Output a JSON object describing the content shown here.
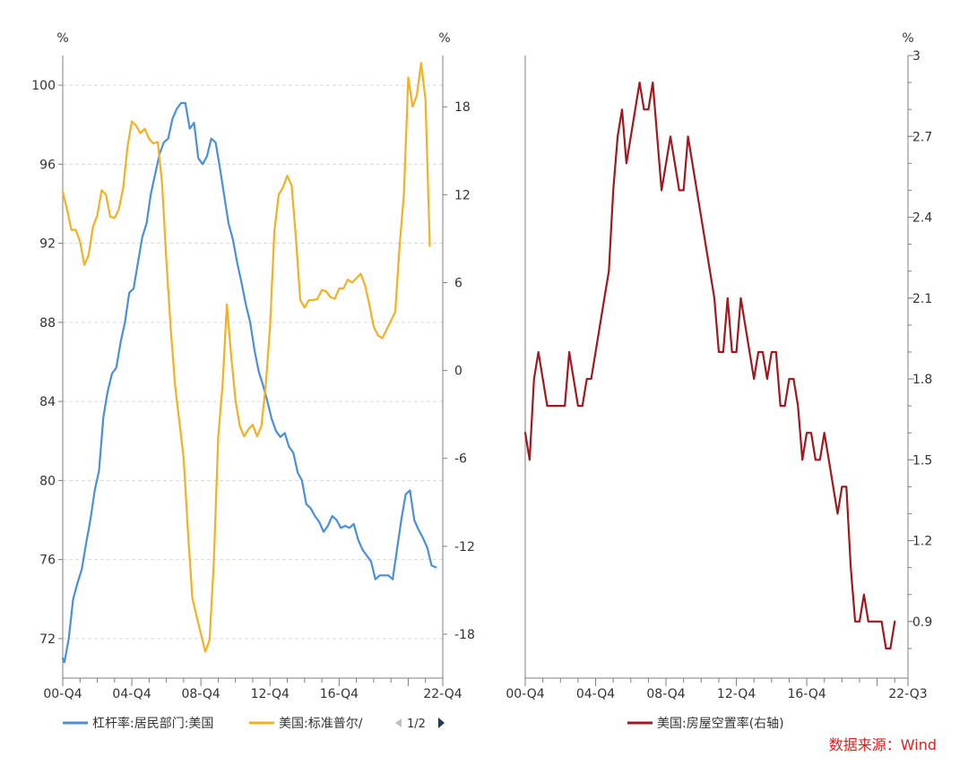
{
  "chart_data": [
    {
      "type": "line",
      "units": {
        "left": "%",
        "right": "%"
      },
      "x_ticks": [
        "00-Q4",
        "04-Q4",
        "08-Q4",
        "12-Q4",
        "16-Q4",
        "22-Q4"
      ],
      "y_left": {
        "ticks": [
          "72",
          "76",
          "80",
          "84",
          "88",
          "92",
          "96",
          "100"
        ],
        "range": [
          70,
          101.5
        ]
      },
      "y_right": {
        "ticks": [
          "-18",
          "-12",
          "-6",
          "0",
          "6",
          "12",
          "18"
        ],
        "range": [
          -21,
          21.5
        ]
      },
      "grid": true,
      "legend": {
        "position": "bottom",
        "items": [
          "杠杆率:居民部门:美国",
          "美国:标准普尔/"
        ],
        "page": "1/2"
      },
      "series": [
        {
          "name": "杠杆率:居民部门:美国",
          "axis": "left",
          "color": "#4a90d9",
          "points": [
            [
              0.0,
              71.0
            ],
            [
              0.1,
              70.8
            ],
            [
              0.35,
              72.0
            ],
            [
              0.6,
              74.0
            ],
            [
              0.85,
              74.8
            ],
            [
              1.1,
              75.5
            ],
            [
              1.35,
              76.8
            ],
            [
              1.6,
              78.0
            ],
            [
              1.85,
              79.5
            ],
            [
              2.1,
              80.5
            ],
            [
              2.35,
              83.2
            ],
            [
              2.6,
              84.5
            ],
            [
              2.85,
              85.4
            ],
            [
              3.1,
              85.7
            ],
            [
              3.35,
              87.0
            ],
            [
              3.6,
              88.0
            ],
            [
              3.85,
              89.5
            ],
            [
              4.1,
              89.7
            ],
            [
              4.35,
              91.0
            ],
            [
              4.6,
              92.3
            ],
            [
              4.85,
              93.0
            ],
            [
              5.1,
              94.5
            ],
            [
              5.35,
              95.5
            ],
            [
              5.6,
              96.5
            ],
            [
              5.85,
              97.1
            ],
            [
              6.1,
              97.3
            ],
            [
              6.35,
              98.3
            ],
            [
              6.6,
              98.8
            ],
            [
              6.85,
              99.1
            ],
            [
              7.1,
              99.1
            ],
            [
              7.35,
              97.8
            ],
            [
              7.6,
              98.1
            ],
            [
              7.85,
              96.3
            ],
            [
              8.1,
              96.0
            ],
            [
              8.35,
              96.4
            ],
            [
              8.6,
              97.3
            ],
            [
              8.85,
              97.1
            ],
            [
              9.1,
              95.8
            ],
            [
              9.35,
              94.4
            ],
            [
              9.6,
              93.0
            ],
            [
              9.85,
              92.2
            ],
            [
              10.1,
              91.0
            ],
            [
              10.35,
              90.0
            ],
            [
              10.6,
              88.9
            ],
            [
              10.85,
              88.0
            ],
            [
              11.1,
              86.6
            ],
            [
              11.35,
              85.5
            ],
            [
              11.6,
              84.8
            ],
            [
              11.85,
              84.0
            ],
            [
              12.1,
              83.1
            ],
            [
              12.35,
              82.5
            ],
            [
              12.6,
              82.2
            ],
            [
              12.85,
              82.4
            ],
            [
              13.1,
              81.7
            ],
            [
              13.35,
              81.4
            ],
            [
              13.6,
              80.4
            ],
            [
              13.85,
              80.0
            ],
            [
              14.1,
              78.8
            ],
            [
              14.35,
              78.6
            ],
            [
              14.6,
              78.2
            ],
            [
              14.85,
              77.9
            ],
            [
              15.1,
              77.4
            ],
            [
              15.35,
              77.7
            ],
            [
              15.6,
              78.2
            ],
            [
              15.85,
              78.0
            ],
            [
              16.1,
              77.6
            ],
            [
              16.35,
              77.7
            ],
            [
              16.6,
              77.6
            ],
            [
              16.85,
              77.8
            ],
            [
              17.1,
              77.0
            ],
            [
              17.35,
              76.5
            ],
            [
              17.6,
              76.2
            ],
            [
              17.85,
              75.9
            ],
            [
              18.1,
              75.0
            ],
            [
              18.35,
              75.2
            ],
            [
              18.6,
              75.2
            ],
            [
              18.85,
              75.2
            ],
            [
              19.1,
              75.0
            ],
            [
              19.35,
              76.5
            ],
            [
              19.6,
              78.0
            ],
            [
              19.85,
              79.3
            ],
            [
              20.1,
              79.5
            ],
            [
              20.35,
              78.0
            ],
            [
              20.6,
              77.5
            ],
            [
              20.85,
              77.1
            ],
            [
              21.1,
              76.6
            ],
            [
              21.35,
              75.7
            ],
            [
              21.6,
              75.6
            ]
          ]
        },
        {
          "name": "美国:标准普尔/",
          "axis": "right",
          "color": "#f4b020",
          "points": [
            [
              0.0,
              12.2
            ],
            [
              0.25,
              11.0
            ],
            [
              0.5,
              9.6
            ],
            [
              0.75,
              9.6
            ],
            [
              1.0,
              8.8
            ],
            [
              1.25,
              7.2
            ],
            [
              1.5,
              7.9
            ],
            [
              1.75,
              9.8
            ],
            [
              2.0,
              10.6
            ],
            [
              2.25,
              12.3
            ],
            [
              2.5,
              12.0
            ],
            [
              2.75,
              10.5
            ],
            [
              3.0,
              10.4
            ],
            [
              3.25,
              11.0
            ],
            [
              3.5,
              12.5
            ],
            [
              3.75,
              15.3
            ],
            [
              4.0,
              17.0
            ],
            [
              4.25,
              16.7
            ],
            [
              4.5,
              16.2
            ],
            [
              4.75,
              16.5
            ],
            [
              5.0,
              15.8
            ],
            [
              5.25,
              15.5
            ],
            [
              5.5,
              15.6
            ],
            [
              5.75,
              12.8
            ],
            [
              6.0,
              7.5
            ],
            [
              6.25,
              2.8
            ],
            [
              6.5,
              -1.0
            ],
            [
              6.75,
              -3.5
            ],
            [
              7.0,
              -6.0
            ],
            [
              7.25,
              -11.0
            ],
            [
              7.5,
              -15.5
            ],
            [
              7.75,
              -16.8
            ],
            [
              8.0,
              -18.0
            ],
            [
              8.25,
              -19.2
            ],
            [
              8.5,
              -18.4
            ],
            [
              8.75,
              -13.0
            ],
            [
              9.0,
              -4.5
            ],
            [
              9.25,
              -1.0
            ],
            [
              9.5,
              4.5
            ],
            [
              9.75,
              1.0
            ],
            [
              10.0,
              -2.0
            ],
            [
              10.25,
              -3.8
            ],
            [
              10.5,
              -4.5
            ],
            [
              10.75,
              -4.0
            ],
            [
              11.0,
              -3.7
            ],
            [
              11.25,
              -4.5
            ],
            [
              11.5,
              -3.8
            ],
            [
              11.75,
              -1.0
            ],
            [
              12.0,
              3.0
            ],
            [
              12.25,
              9.5
            ],
            [
              12.5,
              12.0
            ],
            [
              12.75,
              12.5
            ],
            [
              13.0,
              13.3
            ],
            [
              13.25,
              12.6
            ],
            [
              13.5,
              9.0
            ],
            [
              13.75,
              4.8
            ],
            [
              14.0,
              4.3
            ],
            [
              14.25,
              4.8
            ],
            [
              14.5,
              4.8
            ],
            [
              14.75,
              4.9
            ],
            [
              15.0,
              5.5
            ],
            [
              15.25,
              5.4
            ],
            [
              15.5,
              5.0
            ],
            [
              15.75,
              4.9
            ],
            [
              16.0,
              5.6
            ],
            [
              16.25,
              5.6
            ],
            [
              16.5,
              6.2
            ],
            [
              16.75,
              6.0
            ],
            [
              17.0,
              6.3
            ],
            [
              17.25,
              6.6
            ],
            [
              17.5,
              5.8
            ],
            [
              17.75,
              4.5
            ],
            [
              18.0,
              3.0
            ],
            [
              18.25,
              2.4
            ],
            [
              18.5,
              2.2
            ],
            [
              18.75,
              2.8
            ],
            [
              19.0,
              3.4
            ],
            [
              19.25,
              4.0
            ],
            [
              19.5,
              8.5
            ],
            [
              19.75,
              12.0
            ],
            [
              20.0,
              20.0
            ],
            [
              20.25,
              18.0
            ],
            [
              20.5,
              18.8
            ],
            [
              20.75,
              21.0
            ],
            [
              21.0,
              18.5
            ],
            [
              21.25,
              8.5
            ]
          ]
        }
      ]
    },
    {
      "type": "line",
      "units": {
        "right": "%"
      },
      "x_ticks": [
        "00-Q4",
        "04-Q4",
        "08-Q4",
        "12-Q4",
        "16-Q4",
        "22-Q3"
      ],
      "y_right": {
        "ticks": [
          "0.9",
          "1.2",
          "1.5",
          "1.8",
          "2.1",
          "2.4",
          "2.7",
          "3"
        ],
        "range": [
          0.69,
          3.0
        ]
      },
      "grid": false,
      "legend": {
        "position": "bottom",
        "items": [
          "美国:房屋空置率(右轴)"
        ]
      },
      "series": [
        {
          "name": "美国:房屋空置率(右轴)",
          "axis": "right",
          "color": "#a0191e",
          "points": [
            [
              0,
              1.6
            ],
            [
              1,
              1.5
            ],
            [
              2,
              1.8
            ],
            [
              3,
              1.9
            ],
            [
              4,
              1.8
            ],
            [
              5,
              1.7
            ],
            [
              6,
              1.7
            ],
            [
              7,
              1.7
            ],
            [
              8,
              1.7
            ],
            [
              9,
              1.7
            ],
            [
              10,
              1.9
            ],
            [
              11,
              1.8
            ],
            [
              12,
              1.7
            ],
            [
              13,
              1.7
            ],
            [
              14,
              1.8
            ],
            [
              15,
              1.8
            ],
            [
              16,
              1.9
            ],
            [
              17,
              2.0
            ],
            [
              18,
              2.1
            ],
            [
              19,
              2.2
            ],
            [
              20,
              2.5
            ],
            [
              21,
              2.7
            ],
            [
              22,
              2.8
            ],
            [
              23,
              2.6
            ],
            [
              24,
              2.7
            ],
            [
              25,
              2.8
            ],
            [
              26,
              2.9
            ],
            [
              27,
              2.8
            ],
            [
              28,
              2.8
            ],
            [
              29,
              2.9
            ],
            [
              30,
              2.7
            ],
            [
              31,
              2.5
            ],
            [
              32,
              2.6
            ],
            [
              33,
              2.7
            ],
            [
              34,
              2.6
            ],
            [
              35,
              2.5
            ],
            [
              36,
              2.5
            ],
            [
              37,
              2.7
            ],
            [
              38,
              2.6
            ],
            [
              39,
              2.5
            ],
            [
              40,
              2.4
            ],
            [
              41,
              2.3
            ],
            [
              42,
              2.2
            ],
            [
              43,
              2.1
            ],
            [
              44,
              1.9
            ],
            [
              45,
              1.9
            ],
            [
              46,
              2.1
            ],
            [
              47,
              1.9
            ],
            [
              48,
              1.9
            ],
            [
              49,
              2.1
            ],
            [
              50,
              2.0
            ],
            [
              51,
              1.9
            ],
            [
              52,
              1.8
            ],
            [
              53,
              1.9
            ],
            [
              54,
              1.9
            ],
            [
              55,
              1.8
            ],
            [
              56,
              1.9
            ],
            [
              57,
              1.9
            ],
            [
              58,
              1.7
            ],
            [
              59,
              1.7
            ],
            [
              60,
              1.8
            ],
            [
              61,
              1.8
            ],
            [
              62,
              1.7
            ],
            [
              63,
              1.5
            ],
            [
              64,
              1.6
            ],
            [
              65,
              1.6
            ],
            [
              66,
              1.5
            ],
            [
              67,
              1.5
            ],
            [
              68,
              1.6
            ],
            [
              69,
              1.5
            ],
            [
              70,
              1.4
            ],
            [
              71,
              1.3
            ],
            [
              72,
              1.4
            ],
            [
              73,
              1.4
            ],
            [
              74,
              1.1
            ],
            [
              75,
              0.9
            ],
            [
              76,
              0.9
            ],
            [
              77,
              1.0
            ],
            [
              78,
              0.9
            ],
            [
              79,
              0.9
            ],
            [
              80,
              0.9
            ],
            [
              81,
              0.9
            ],
            [
              82,
              0.8
            ],
            [
              83,
              0.8
            ],
            [
              84,
              0.9
            ]
          ]
        }
      ]
    }
  ],
  "source": {
    "text": "数据来源：Wind",
    "color": "#e0201b"
  },
  "legend_nav": {
    "prev_icon": "triangle-left-icon",
    "next_icon": "triangle-right-icon"
  }
}
